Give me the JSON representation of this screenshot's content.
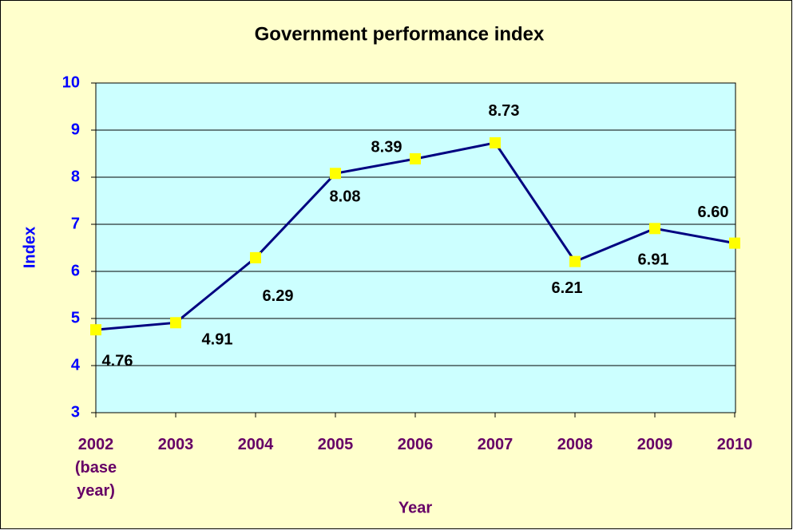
{
  "chart_data": {
    "type": "line",
    "title": "Government performance index",
    "x_label": "Year",
    "y_label": "Index",
    "categories": [
      "2002 (base year)",
      "2003",
      "2004",
      "2005",
      "2006",
      "2007",
      "2008",
      "2009",
      "2010"
    ],
    "series": [
      {
        "name": "Index",
        "color": "#000080",
        "marker_color": "#ffff00",
        "values": [
          4.76,
          4.91,
          6.29,
          8.08,
          8.39,
          8.73,
          6.21,
          6.91,
          6.6
        ],
        "value_labels": [
          "4.76",
          "4.91",
          "6.29",
          "8.08",
          "8.39",
          "8.73",
          "6.21",
          "6.91",
          "6.60"
        ]
      }
    ],
    "ylim": [
      3,
      10
    ],
    "yticks": [
      3,
      4,
      5,
      6,
      7,
      8,
      9,
      10
    ],
    "grid": true,
    "background_color": "#ffffcc",
    "plot_color": "#ccffff"
  }
}
